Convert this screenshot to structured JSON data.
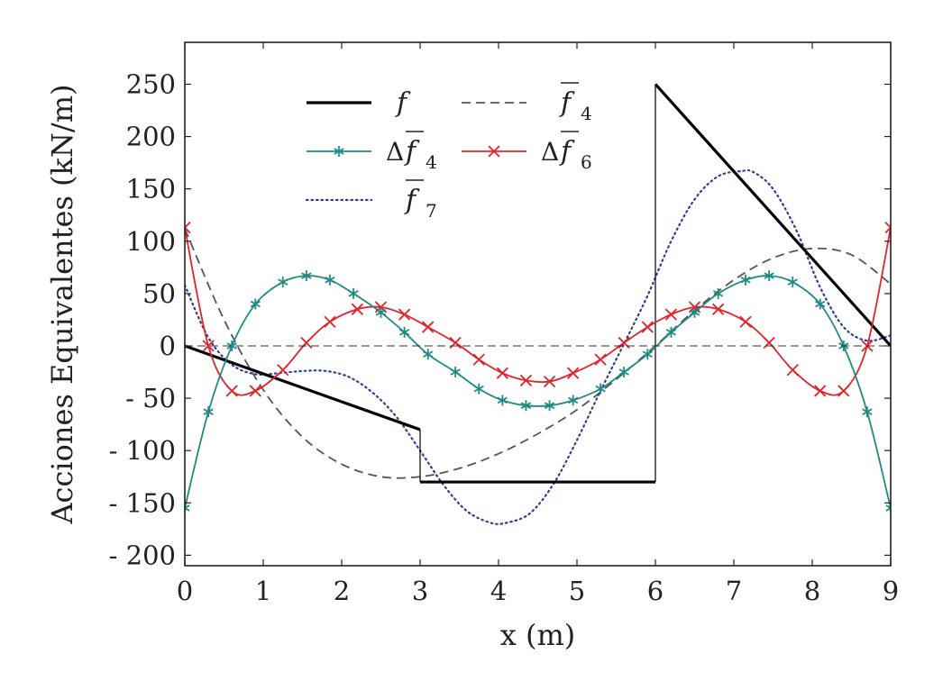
{
  "chart_data": {
    "type": "line",
    "xlabel": "x (m)",
    "ylabel": "Acciones Equivalentes (kN/m)",
    "xlim": [
      0,
      9
    ],
    "ylim": [
      -210,
      290
    ],
    "x_ticks": [
      "0",
      "1",
      "2",
      "3",
      "4",
      "5",
      "6",
      "7",
      "8",
      "9"
    ],
    "y_ticks": [
      "- 200",
      "- 150",
      "- 100",
      "- 50",
      "0",
      "50",
      "100",
      "150",
      "200",
      "250"
    ],
    "grid": false,
    "legend_position": "top-left",
    "series": [
      {
        "name": "f",
        "legend_base": "f",
        "legend_sub": "",
        "legend_overline": false,
        "legend_delta": false,
        "color": "#000000",
        "style": "solid-thick",
        "marker": "none",
        "x": [
          0,
          3,
          3,
          6,
          6,
          9
        ],
        "y": [
          0,
          -80,
          -130,
          -130,
          250,
          0
        ]
      },
      {
        "name": "f̄4",
        "legend_base": "f",
        "legend_sub": "4",
        "legend_overline": true,
        "legend_delta": false,
        "color": "#555555",
        "style": "dashed",
        "marker": "none",
        "x": [
          0,
          0.5,
          1,
          1.5,
          2,
          2.5,
          3,
          3.5,
          4,
          4.5,
          5,
          5.5,
          6,
          6.5,
          7,
          7.5,
          8,
          8.5,
          9
        ],
        "y": [
          112,
          25,
          -42,
          -87,
          -113,
          -125,
          -125,
          -117,
          -103,
          -84,
          -61,
          -32,
          0,
          34,
          63,
          84,
          93,
          87,
          59
        ]
      },
      {
        "name": "Δf̄4",
        "legend_base": "f",
        "legend_sub": "4",
        "legend_overline": true,
        "legend_delta": true,
        "color": "#1f8a84",
        "style": "solid",
        "marker": "star",
        "x": [
          0,
          0.3,
          0.6,
          0.9,
          1.25,
          1.55,
          1.85,
          2.15,
          2.5,
          2.8,
          3.1,
          3.45,
          3.75,
          4.05,
          4.35,
          4.65,
          4.95,
          5.3,
          5.6,
          5.9,
          6.2,
          6.5,
          6.8,
          7.15,
          7.45,
          7.75,
          8.1,
          8.4,
          8.7,
          9
        ],
        "y": [
          -155,
          -63,
          0,
          40,
          61,
          67,
          63,
          50,
          32,
          13,
          -8,
          -25,
          -41,
          -52,
          -57,
          -57,
          -52,
          -41,
          -25,
          -8,
          13,
          32,
          50,
          63,
          67,
          61,
          40,
          0,
          -63,
          -155
        ]
      },
      {
        "name": "Δf̄6",
        "legend_base": "f",
        "legend_sub": "6",
        "legend_overline": true,
        "legend_delta": true,
        "color": "#e0242b",
        "style": "solid",
        "marker": "x",
        "x": [
          0,
          0.3,
          0.6,
          0.9,
          1.25,
          1.55,
          1.85,
          2.2,
          2.5,
          2.8,
          3.1,
          3.45,
          3.75,
          4.05,
          4.35,
          4.65,
          4.95,
          5.3,
          5.6,
          5.9,
          6.2,
          6.5,
          6.8,
          7.15,
          7.45,
          7.75,
          8.1,
          8.4,
          8.7,
          9
        ],
        "y": [
          113,
          0,
          -43,
          -43,
          -23,
          3,
          23,
          35,
          37,
          30,
          18,
          3,
          -13,
          -26,
          -33,
          -34,
          -26,
          -13,
          3,
          18,
          30,
          37,
          35,
          23,
          3,
          -23,
          -43,
          -43,
          0,
          113
        ]
      },
      {
        "name": "f̄7",
        "legend_base": "f",
        "legend_sub": "7",
        "legend_overline": true,
        "legend_delta": false,
        "color": "#2d3e99",
        "style": "dotted",
        "marker": "none",
        "x": [
          0,
          0.3,
          0.6,
          0.9,
          1.2,
          1.5,
          1.8,
          2.1,
          2.4,
          2.7,
          3.0,
          3.3,
          3.6,
          3.9,
          4.1,
          4.4,
          4.7,
          5.0,
          5.3,
          5.6,
          5.9,
          6.2,
          6.5,
          6.8,
          7.1,
          7.25,
          7.5,
          7.8,
          8.1,
          8.4,
          8.7,
          9
        ],
        "y": [
          58,
          8,
          -18,
          -27,
          -26,
          -24,
          -24,
          -30,
          -45,
          -68,
          -100,
          -133,
          -158,
          -169,
          -169,
          -160,
          -132,
          -90,
          -43,
          2,
          48,
          100,
          140,
          162,
          167,
          166,
          150,
          110,
          56,
          18,
          5,
          10
        ]
      }
    ]
  }
}
